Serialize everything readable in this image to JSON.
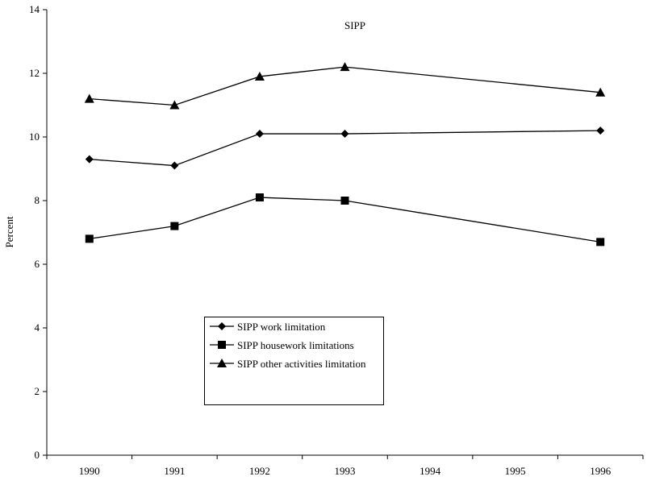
{
  "chart_data": {
    "type": "line",
    "title": "SIPP",
    "y_label": "Percent",
    "x": [
      1990,
      1991,
      1992,
      1993,
      1996
    ],
    "xlim": [
      1989.5,
      1996.5
    ],
    "xticks": [
      1990,
      1991,
      1992,
      1993,
      1994,
      1995,
      1996
    ],
    "ylim": [
      0,
      14
    ],
    "yticks": [
      0,
      2,
      4,
      6,
      8,
      10,
      12,
      14
    ],
    "grid": false,
    "series": [
      {
        "name": "SIPP work limitation",
        "color": "#000000",
        "marker": "diamond",
        "values": [
          9.3,
          9.1,
          10.1,
          10.1,
          10.2
        ]
      },
      {
        "name": "SIPP housework limitations",
        "color": "#000000",
        "marker": "square",
        "values": [
          6.8,
          7.2,
          8.1,
          8.0,
          6.7
        ]
      },
      {
        "name": "SIPP other activities limitation",
        "color": "#000000",
        "marker": "triangle",
        "values": [
          11.2,
          11.0,
          11.9,
          12.2,
          11.4
        ]
      }
    ]
  }
}
